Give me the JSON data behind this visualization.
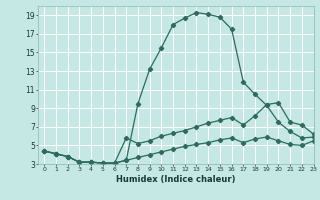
{
  "xlabel": "Humidex (Indice chaleur)",
  "bg_color": "#c5e8e5",
  "grid_color": "#ffffff",
  "line_color": "#2d6b5e",
  "xlim": [
    -0.5,
    23
  ],
  "ylim": [
    3,
    20
  ],
  "xticks": [
    0,
    1,
    2,
    3,
    4,
    5,
    6,
    7,
    8,
    9,
    10,
    11,
    12,
    13,
    14,
    15,
    16,
    17,
    18,
    19,
    20,
    21,
    22,
    23
  ],
  "yticks": [
    3,
    5,
    7,
    9,
    11,
    13,
    15,
    17,
    19
  ],
  "curve1_x": [
    0,
    1,
    2,
    3,
    4,
    5,
    6,
    7,
    8,
    9,
    10,
    11,
    12,
    13,
    14,
    15,
    16,
    17,
    18,
    19,
    20,
    21,
    22,
    23
  ],
  "curve1_y": [
    4.4,
    4.1,
    3.8,
    3.2,
    3.2,
    3.1,
    3.1,
    3.4,
    9.5,
    13.2,
    15.5,
    18.0,
    18.7,
    19.3,
    19.1,
    18.8,
    17.5,
    11.8,
    10.5,
    9.3,
    7.5,
    6.5,
    5.8,
    5.9
  ],
  "curve2_x": [
    0,
    1,
    2,
    3,
    4,
    5,
    6,
    7,
    8,
    9,
    10,
    11,
    12,
    13,
    14,
    15,
    16,
    17,
    18,
    19,
    20,
    21,
    22,
    23
  ],
  "curve2_y": [
    4.4,
    4.1,
    3.8,
    3.2,
    3.2,
    3.1,
    3.1,
    5.8,
    5.2,
    5.5,
    6.0,
    6.3,
    6.6,
    7.0,
    7.4,
    7.7,
    8.0,
    7.2,
    8.2,
    9.4,
    9.6,
    7.5,
    7.2,
    6.2
  ],
  "curve3_x": [
    0,
    1,
    2,
    3,
    4,
    5,
    6,
    7,
    8,
    9,
    10,
    11,
    12,
    13,
    14,
    15,
    16,
    17,
    18,
    19,
    20,
    21,
    22,
    23
  ],
  "curve3_y": [
    4.4,
    4.1,
    3.8,
    3.2,
    3.2,
    3.1,
    3.1,
    3.4,
    3.7,
    4.0,
    4.3,
    4.6,
    4.9,
    5.1,
    5.3,
    5.6,
    5.8,
    5.3,
    5.7,
    5.9,
    5.5,
    5.1,
    5.0,
    5.5
  ]
}
